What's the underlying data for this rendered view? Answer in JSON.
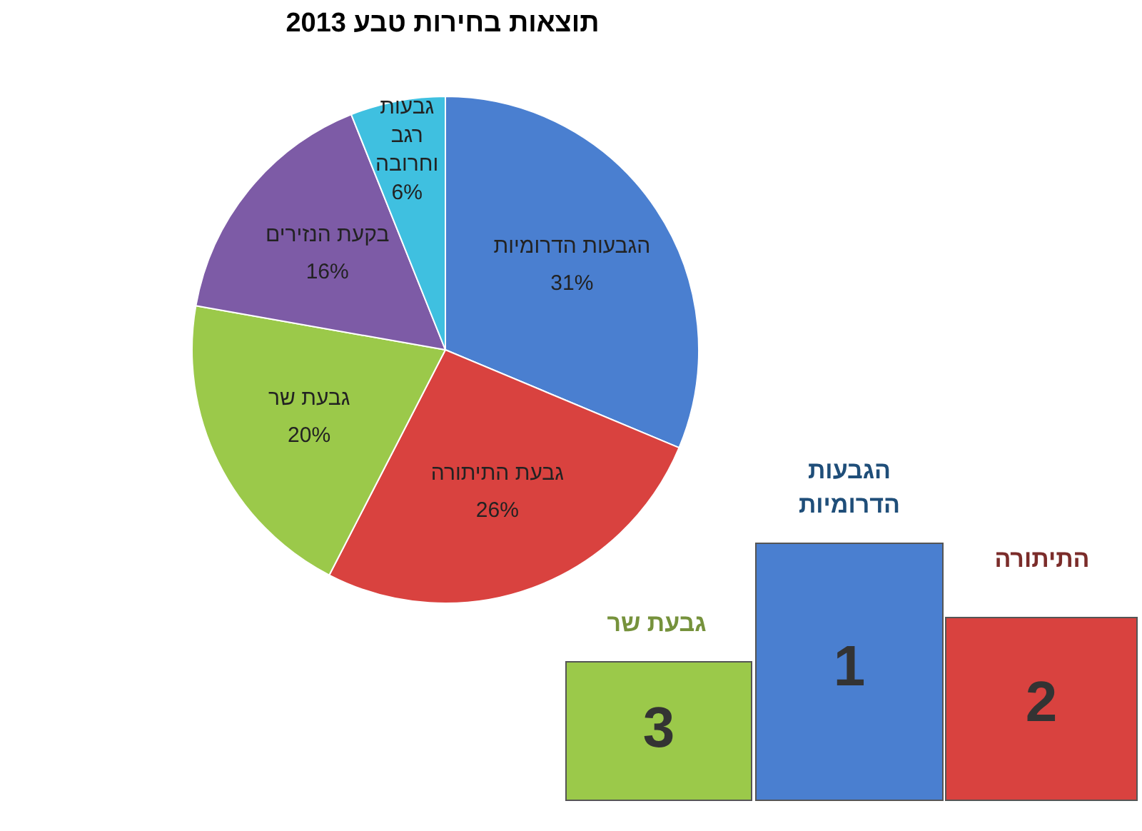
{
  "chart_data": {
    "type": "pie",
    "title": "תוצאות בחירות טבע 2013",
    "categories": [
      "הגבעות הדרומיות",
      "גבעת התיתורה",
      "גבעת שר",
      "בקעת הנזירים",
      "גבעות רגב וחרובה"
    ],
    "values": [
      31,
      26,
      20,
      16,
      6
    ],
    "value_labels": [
      "31%",
      "26%",
      "20%",
      "16%",
      "6%"
    ],
    "colors": [
      "#4a7fd0",
      "#d9423f",
      "#9bc94a",
      "#7d5ba6",
      "#3fc0e0"
    ],
    "legend": false,
    "annotations": [
      "גבעת שר",
      "3",
      "הגבעות הדרומיות",
      "1",
      "התיתורה",
      "2"
    ]
  }
}
